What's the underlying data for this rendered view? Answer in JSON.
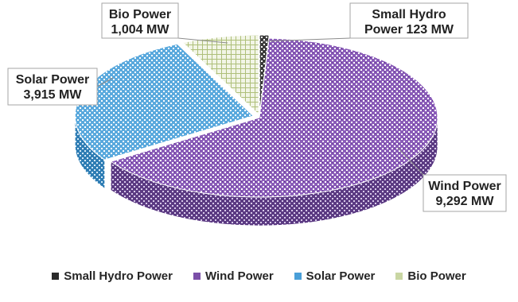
{
  "chart_data": {
    "type": "pie",
    "style": "3d-exploded",
    "unit": "MW",
    "slices": [
      {
        "name": "Small Hydro Power",
        "value": 123,
        "label_line1": "Small Hydro",
        "label_line2": "Power 123 MW",
        "color": "#2b2b2b"
      },
      {
        "name": "Wind Power",
        "value": 9292,
        "label_line1": "Wind Power",
        "label_line2": "9,292 MW",
        "color": "#7b4fa8"
      },
      {
        "name": "Solar Power",
        "value": 3915,
        "label_line1": "Solar Power",
        "label_line2": "3,915 MW",
        "color": "#4a9fd8"
      },
      {
        "name": "Bio Power",
        "value": 1004,
        "label_line1": "Bio Power",
        "label_line2": "1,004 MW",
        "color": "#c9d6a3"
      }
    ],
    "legend": {
      "position": "bottom",
      "items": [
        "Small Hydro Power",
        "Wind Power",
        "Solar Power",
        "Bio Power"
      ]
    }
  }
}
